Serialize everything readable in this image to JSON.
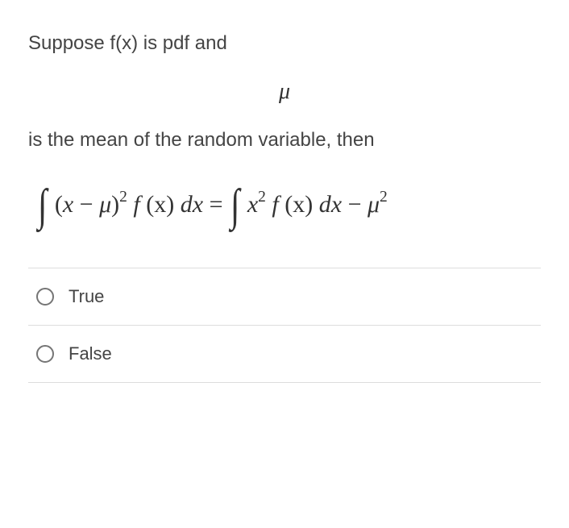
{
  "question": {
    "line1": "Suppose f(x) is pdf and",
    "mu": "μ",
    "line2": "is the mean of the random variable, then"
  },
  "equation": {
    "lhs_open": "(",
    "x": "x",
    "minus": " − ",
    "mu": "μ",
    "lhs_close": ")",
    "exp2": "2",
    "f": " f ",
    "x_arg": "(x)",
    "dx": " dx",
    "eq": " = ",
    "x2": "x",
    "mu2": "μ"
  },
  "options": [
    {
      "label": "True",
      "selected": false
    },
    {
      "label": "False",
      "selected": false
    }
  ],
  "colors": {
    "text": "#444444",
    "divider": "#dddddd",
    "radio_border": "#757575",
    "background": "#ffffff"
  }
}
